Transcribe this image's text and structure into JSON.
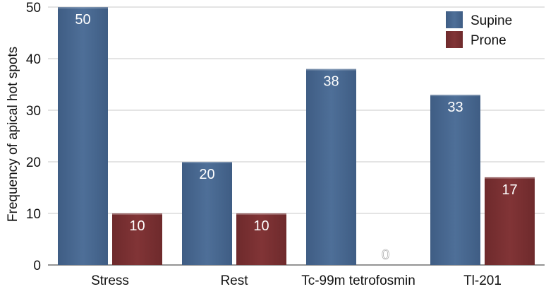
{
  "chart_data": {
    "type": "bar",
    "title": "",
    "xlabel": "",
    "ylabel": "Frequency of apical hot spots",
    "ylim": [
      0,
      50
    ],
    "yticks": [
      0,
      10,
      20,
      30,
      40,
      50
    ],
    "grid": true,
    "legend_position": "top-right",
    "categories": [
      "Stress",
      "Rest",
      "Tc-99m tetrofosmin",
      "Tl-201"
    ],
    "series": [
      {
        "name": "Supine",
        "color": "#4a6a92",
        "values": [
          50,
          20,
          38,
          33
        ]
      },
      {
        "name": "Prone",
        "color": "#7a2f31",
        "values": [
          10,
          10,
          0,
          17
        ]
      }
    ]
  }
}
